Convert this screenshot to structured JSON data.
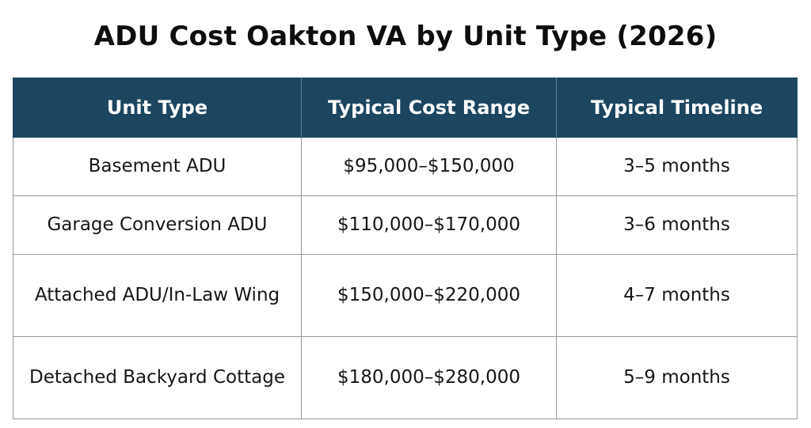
{
  "title": "ADU Cost Oakton VA by Unit Type (2026)",
  "table": {
    "headers": [
      "Unit Type",
      "Typical Cost Range",
      "Typical Timeline"
    ],
    "rows": [
      {
        "unit_type": "Basement ADU",
        "cost_range": "$95,000–$150,000",
        "timeline": "3–5 months"
      },
      {
        "unit_type": "Garage Conversion ADU",
        "cost_range": "$110,000–$170,000",
        "timeline": "3–6 months"
      },
      {
        "unit_type": "Attached ADU/In-Law Wing",
        "cost_range": "$150,000–$220,000",
        "timeline": "4–7 months"
      },
      {
        "unit_type": "Detached Backyard Cottage",
        "cost_range": "$180,000–$280,000",
        "timeline": "5–9 months"
      }
    ]
  },
  "colors": {
    "header_background": "#1c4660",
    "header_text": "#ffffff",
    "border": "#9a9a9a"
  }
}
